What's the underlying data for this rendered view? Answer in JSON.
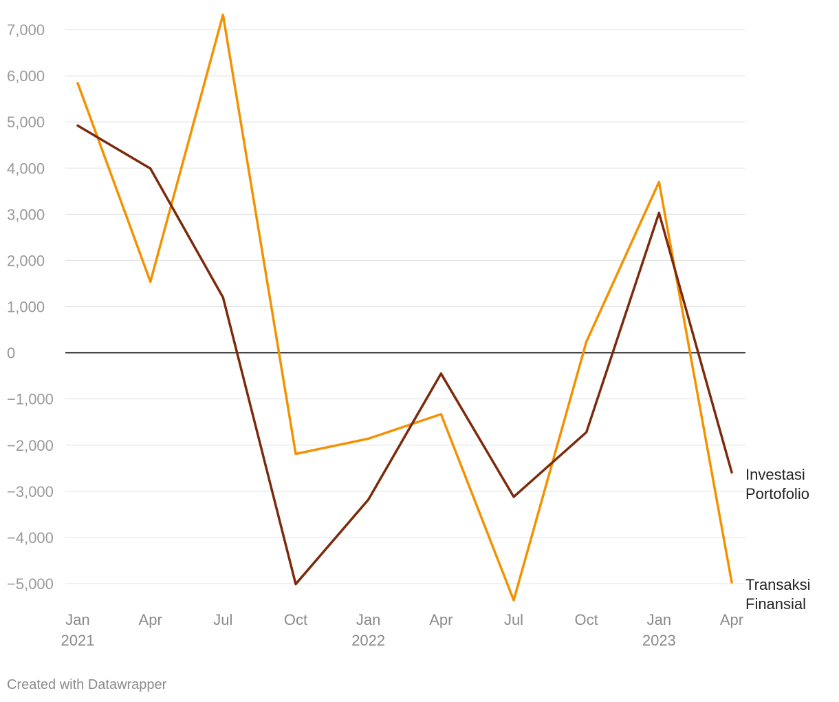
{
  "chart_data": {
    "type": "line",
    "x": [
      "Jan 2021",
      "Apr 2021",
      "Jul 2021",
      "Oct 2021",
      "Jan 2022",
      "Apr 2022",
      "Jul 2022",
      "Oct 2022",
      "Jan 2023",
      "Apr 2023"
    ],
    "x_tick_labels": [
      {
        "top": "Jan",
        "bottom": "2021"
      },
      {
        "top": "Apr",
        "bottom": ""
      },
      {
        "top": "Jul",
        "bottom": ""
      },
      {
        "top": "Oct",
        "bottom": ""
      },
      {
        "top": "Jan",
        "bottom": "2022"
      },
      {
        "top": "Apr",
        "bottom": ""
      },
      {
        "top": "Jul",
        "bottom": ""
      },
      {
        "top": "Oct",
        "bottom": ""
      },
      {
        "top": "Jan",
        "bottom": "2023"
      },
      {
        "top": "Apr",
        "bottom": ""
      }
    ],
    "y_ticks": [
      7000,
      6000,
      5000,
      4000,
      3000,
      2000,
      1000,
      0,
      -1000,
      -2000,
      -3000,
      -4000,
      -5000
    ],
    "y_tick_labels": [
      "7,000",
      "6,000",
      "5,000",
      "4,000",
      "3,000",
      "2,000",
      "1,000",
      "0",
      "−1,000",
      "−2,000",
      "−3,000",
      "−4,000",
      "−5,000"
    ],
    "ylim": [
      -5300,
      7300
    ],
    "grid": true,
    "series": [
      {
        "name_lines": [
          "Investasi",
          "Portofolio"
        ],
        "color": "#7b2a0c",
        "values": [
          4920,
          3990,
          1200,
          -5010,
          -3180,
          -450,
          -3120,
          -1720,
          3030,
          -2590
        ]
      },
      {
        "name_lines": [
          "Transaksi",
          "Finansial"
        ],
        "color": "#f39200",
        "values": [
          5840,
          1540,
          7320,
          -2190,
          -1860,
          -1330,
          -5360,
          240,
          3700,
          -4970
        ]
      }
    ],
    "footer": "Created with Datawrapper"
  }
}
